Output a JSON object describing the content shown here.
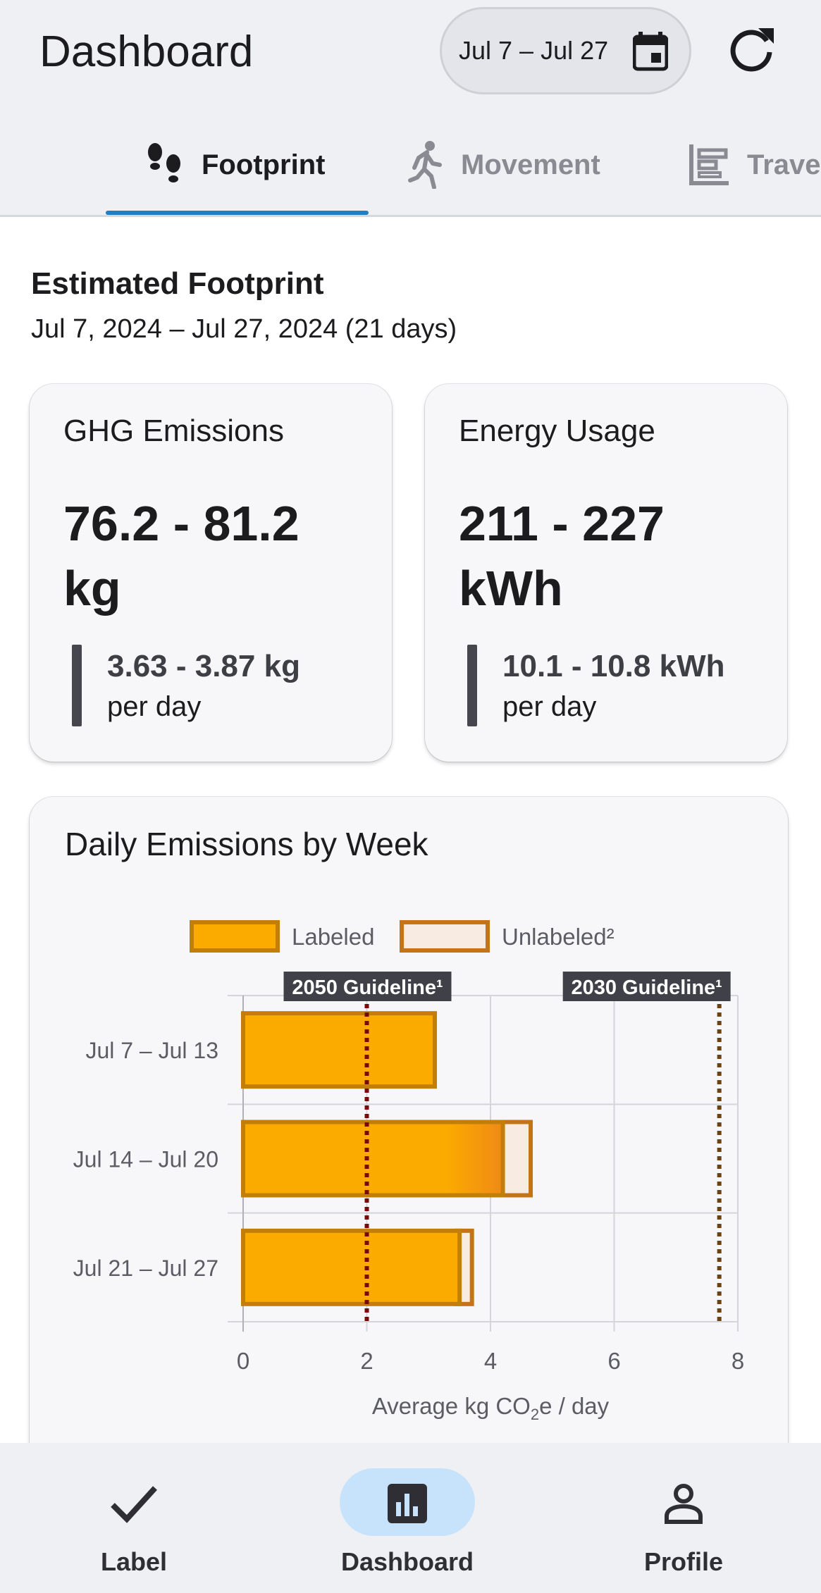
{
  "header": {
    "title": "Dashboard",
    "date_range": "Jul 7 – Jul 27",
    "calendar_icon": "calendar-icon",
    "refresh_icon": "refresh-icon"
  },
  "tabs": [
    {
      "label": "Footprint",
      "icon": "footprints-icon",
      "active": true
    },
    {
      "label": "Movement",
      "icon": "walking-icon",
      "active": false
    },
    {
      "label": "Travel",
      "icon": "timeline-icon",
      "active": false
    }
  ],
  "footprint": {
    "title": "Estimated Footprint",
    "subtitle": "Jul 7, 2024 – Jul 27, 2024 (21 days)"
  },
  "cards": {
    "ghg": {
      "title": "GHG Emissions",
      "value_line1": "76.2 - 81.2",
      "value_line2": "kg",
      "per_day_value": "3.63 - 3.87 kg",
      "per_day_label": "per day"
    },
    "energy": {
      "title": "Energy Usage",
      "value_line1": "211 - 227",
      "value_line2": "kWh",
      "per_day_value": "10.1 - 10.8 kWh",
      "per_day_label": "per day"
    }
  },
  "chart_card": {
    "title": "Daily Emissions by Week"
  },
  "chart_data": {
    "type": "bar",
    "orientation": "horizontal",
    "stacked": true,
    "categories": [
      "Jul 7 – Jul 13",
      "Jul 14 – Jul 20",
      "Jul 21 – Jul 27"
    ],
    "series": [
      {
        "name": "Labeled",
        "values": [
          3.1,
          4.2,
          3.5
        ]
      },
      {
        "name": "Unlabeled²",
        "values": [
          0,
          0.45,
          0.2
        ]
      }
    ],
    "xlabel_main": "Average kg CO",
    "xlabel_sub": "2",
    "xlabel_end": "e / day",
    "xlim": [
      0,
      8
    ],
    "ticks": [
      "0",
      "2",
      "4",
      "6",
      "8"
    ],
    "grid": true,
    "legend_position": "top",
    "annotations": [
      {
        "label": "2050 Guideline¹",
        "x": 2,
        "color": "#7a0a0a"
      },
      {
        "label": "2030 Guideline¹",
        "x": 7.7,
        "color": "#6b4210"
      }
    ],
    "colors": {
      "labeled_fill": "#fbab00",
      "labeled_stroke": "#c17f0a",
      "unlabeled_fill": "#f8ebe1",
      "unlabeled_stroke": "#c27416",
      "grid": "#d4d4da",
      "annotation_bg": "#404048"
    }
  },
  "bottom_nav": [
    {
      "label": "Label",
      "icon": "check-icon",
      "active": false
    },
    {
      "label": "Dashboard",
      "icon": "bar-chart-icon",
      "active": true
    },
    {
      "label": "Profile",
      "icon": "person-icon",
      "active": false
    }
  ]
}
